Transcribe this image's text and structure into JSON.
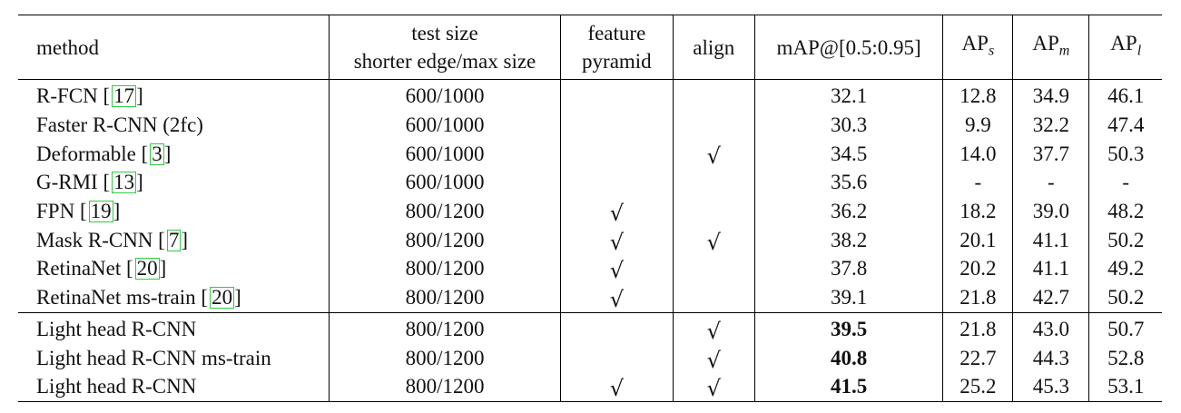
{
  "headers": {
    "method": "method",
    "test_size_line1": "test size",
    "test_size_line2": "shorter edge/max size",
    "feature_line1": "feature",
    "feature_line2": "pyramid",
    "align": "align",
    "map": "mAP@[0.5:0.95]",
    "ap": "AP",
    "aps_sub": "s",
    "apm_sub": "m",
    "apl_sub": "l"
  },
  "group1": [
    {
      "method": "R-FCN",
      "ref": "17",
      "size": "600/1000",
      "fp": "",
      "align": "",
      "map": "32.1",
      "aps": "12.8",
      "apm": "34.9",
      "apl": "46.1"
    },
    {
      "method": "Faster R-CNN (2fc)",
      "ref": "",
      "size": "600/1000",
      "fp": "",
      "align": "",
      "map": "30.3",
      "aps": "9.9",
      "apm": "32.2",
      "apl": "47.4"
    },
    {
      "method": "Deformable",
      "ref": "3",
      "size": "600/1000",
      "fp": "",
      "align": "√",
      "map": "34.5",
      "aps": "14.0",
      "apm": "37.7",
      "apl": "50.3"
    },
    {
      "method": "G-RMI",
      "ref": "13",
      "size": "600/1000",
      "fp": "",
      "align": "",
      "map": "35.6",
      "aps": "-",
      "apm": "-",
      "apl": "-"
    },
    {
      "method": "FPN",
      "ref": "19",
      "size": "800/1200",
      "fp": "√",
      "align": "",
      "map": "36.2",
      "aps": "18.2",
      "apm": "39.0",
      "apl": "48.2"
    },
    {
      "method": "Mask R-CNN",
      "ref": "7",
      "size": "800/1200",
      "fp": "√",
      "align": "√",
      "map": "38.2",
      "aps": "20.1",
      "apm": "41.1",
      "apl": "50.2"
    },
    {
      "method": "RetinaNet",
      "ref": "20",
      "size": "800/1200",
      "fp": "√",
      "align": "",
      "map": "37.8",
      "aps": "20.2",
      "apm": "41.1",
      "apl": "49.2"
    },
    {
      "method": "RetinaNet ms-train",
      "ref": "20",
      "size": "800/1200",
      "fp": "√",
      "align": "",
      "map": "39.1",
      "aps": "21.8",
      "apm": "42.7",
      "apl": "50.2"
    }
  ],
  "group2": [
    {
      "method": "Light head R-CNN",
      "size": "800/1200",
      "fp": "",
      "align": "√",
      "map": "39.5",
      "aps": "21.8",
      "apm": "43.0",
      "apl": "50.7"
    },
    {
      "method": "Light head R-CNN ms-train",
      "size": "800/1200",
      "fp": "",
      "align": "√",
      "map": "40.8",
      "aps": "22.7",
      "apm": "44.3",
      "apl": "52.8"
    },
    {
      "method": "Light head R-CNN",
      "size": "800/1200",
      "fp": "√",
      "align": "√",
      "map": "41.5",
      "aps": "25.2",
      "apm": "45.3",
      "apl": "53.1"
    }
  ]
}
